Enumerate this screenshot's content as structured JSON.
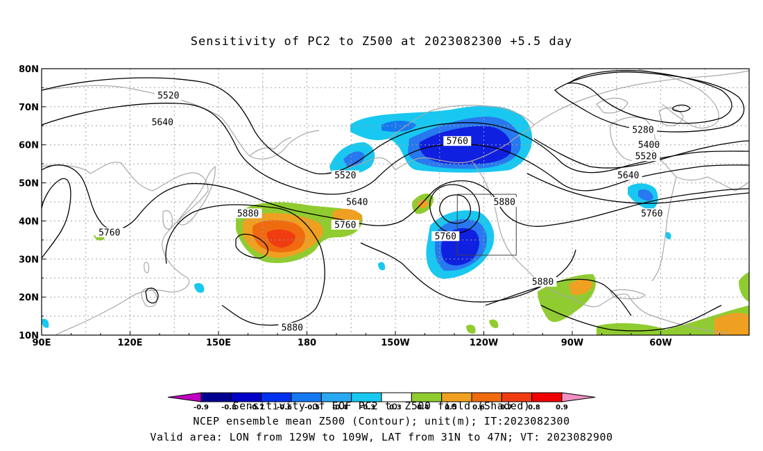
{
  "title": "Sensitivity of PC2 to Z500 at 2023082300 +5.5 day",
  "captions": [
    "Sensitivity of EOF PC2 to Z500 field (Shaded)",
    "NCEP ensemble mean Z500 (Contour); unit(m); IT:2023082300",
    "Valid area: LON from 129W to 109W, LAT from 31N to 47N; VT: 2023082900"
  ],
  "axes": {
    "x_ticks": [
      {
        "lon": 90,
        "label": "90E"
      },
      {
        "lon": 120,
        "label": "120E"
      },
      {
        "lon": 150,
        "label": "150E"
      },
      {
        "lon": 180,
        "label": "180"
      },
      {
        "lon": 210,
        "label": "150W"
      },
      {
        "lon": 240,
        "label": "120W"
      },
      {
        "lon": 270,
        "label": "90W"
      },
      {
        "lon": 300,
        "label": "60W"
      }
    ],
    "y_ticks": [
      {
        "lat": 10,
        "label": "10N"
      },
      {
        "lat": 20,
        "label": "20N"
      },
      {
        "lat": 30,
        "label": "30N"
      },
      {
        "lat": 40,
        "label": "40N"
      },
      {
        "lat": 50,
        "label": "50N"
      },
      {
        "lat": 60,
        "label": "60N"
      },
      {
        "lat": 70,
        "label": "70N"
      },
      {
        "lat": 80,
        "label": "80N"
      }
    ],
    "lon_range": [
      90,
      330
    ],
    "lat_range": [
      10,
      80
    ]
  },
  "valid_box": {
    "lon_min": 231,
    "lon_max": 251,
    "lat_min": 31,
    "lat_max": 47
  },
  "colors": {
    "strong_neg": "#1020e0",
    "mid_neg": "#2878f0",
    "weak_neg": "#18c8f0",
    "weak_pos": "#90cc30",
    "mid_pos": "#f0a020",
    "strong_pos": "#f05010",
    "coast": "#a8a8a8",
    "grid": "#a0a0a0"
  },
  "colorbar": {
    "colors": [
      "#c000c0",
      "#000090",
      "#0000c8",
      "#0030f0",
      "#1478f0",
      "#28a8f0",
      "#18c8f0",
      "#ffffff",
      "#90cc30",
      "#f0a020",
      "#f06a10",
      "#f03c10",
      "#f00000",
      "#f090c0"
    ],
    "labels": [
      "-0.9",
      "-0.8",
      "-0.7",
      "-0.6",
      "-0.5",
      "-0.4",
      "-0.3",
      "0.3",
      "0.4",
      "0.5",
      "0.6",
      "0.7",
      "0.8",
      "0.9"
    ]
  },
  "contour_labels": [
    {
      "text": "5520",
      "lon": 133,
      "lat": 73
    },
    {
      "text": "5640",
      "lon": 131,
      "lat": 66
    },
    {
      "text": "5520",
      "lon": 193,
      "lat": 52
    },
    {
      "text": "5640",
      "lon": 197,
      "lat": 45
    },
    {
      "text": "5760",
      "lon": 193,
      "lat": 39
    },
    {
      "text": "5880",
      "lon": 160,
      "lat": 42
    },
    {
      "text": "5760",
      "lon": 113,
      "lat": 37
    },
    {
      "text": "5880",
      "lon": 175,
      "lat": 12
    },
    {
      "text": "5760",
      "lon": 231,
      "lat": 61
    },
    {
      "text": "5880",
      "lon": 247,
      "lat": 45
    },
    {
      "text": "5760",
      "lon": 227,
      "lat": 36
    },
    {
      "text": "5880",
      "lon": 260,
      "lat": 24
    },
    {
      "text": "5280",
      "lon": 294,
      "lat": 64
    },
    {
      "text": "5400",
      "lon": 296,
      "lat": 60
    },
    {
      "text": "5520",
      "lon": 295,
      "lat": 57
    },
    {
      "text": "5640",
      "lon": 289,
      "lat": 52
    },
    {
      "text": "5760",
      "lon": 297,
      "lat": 42
    }
  ]
}
